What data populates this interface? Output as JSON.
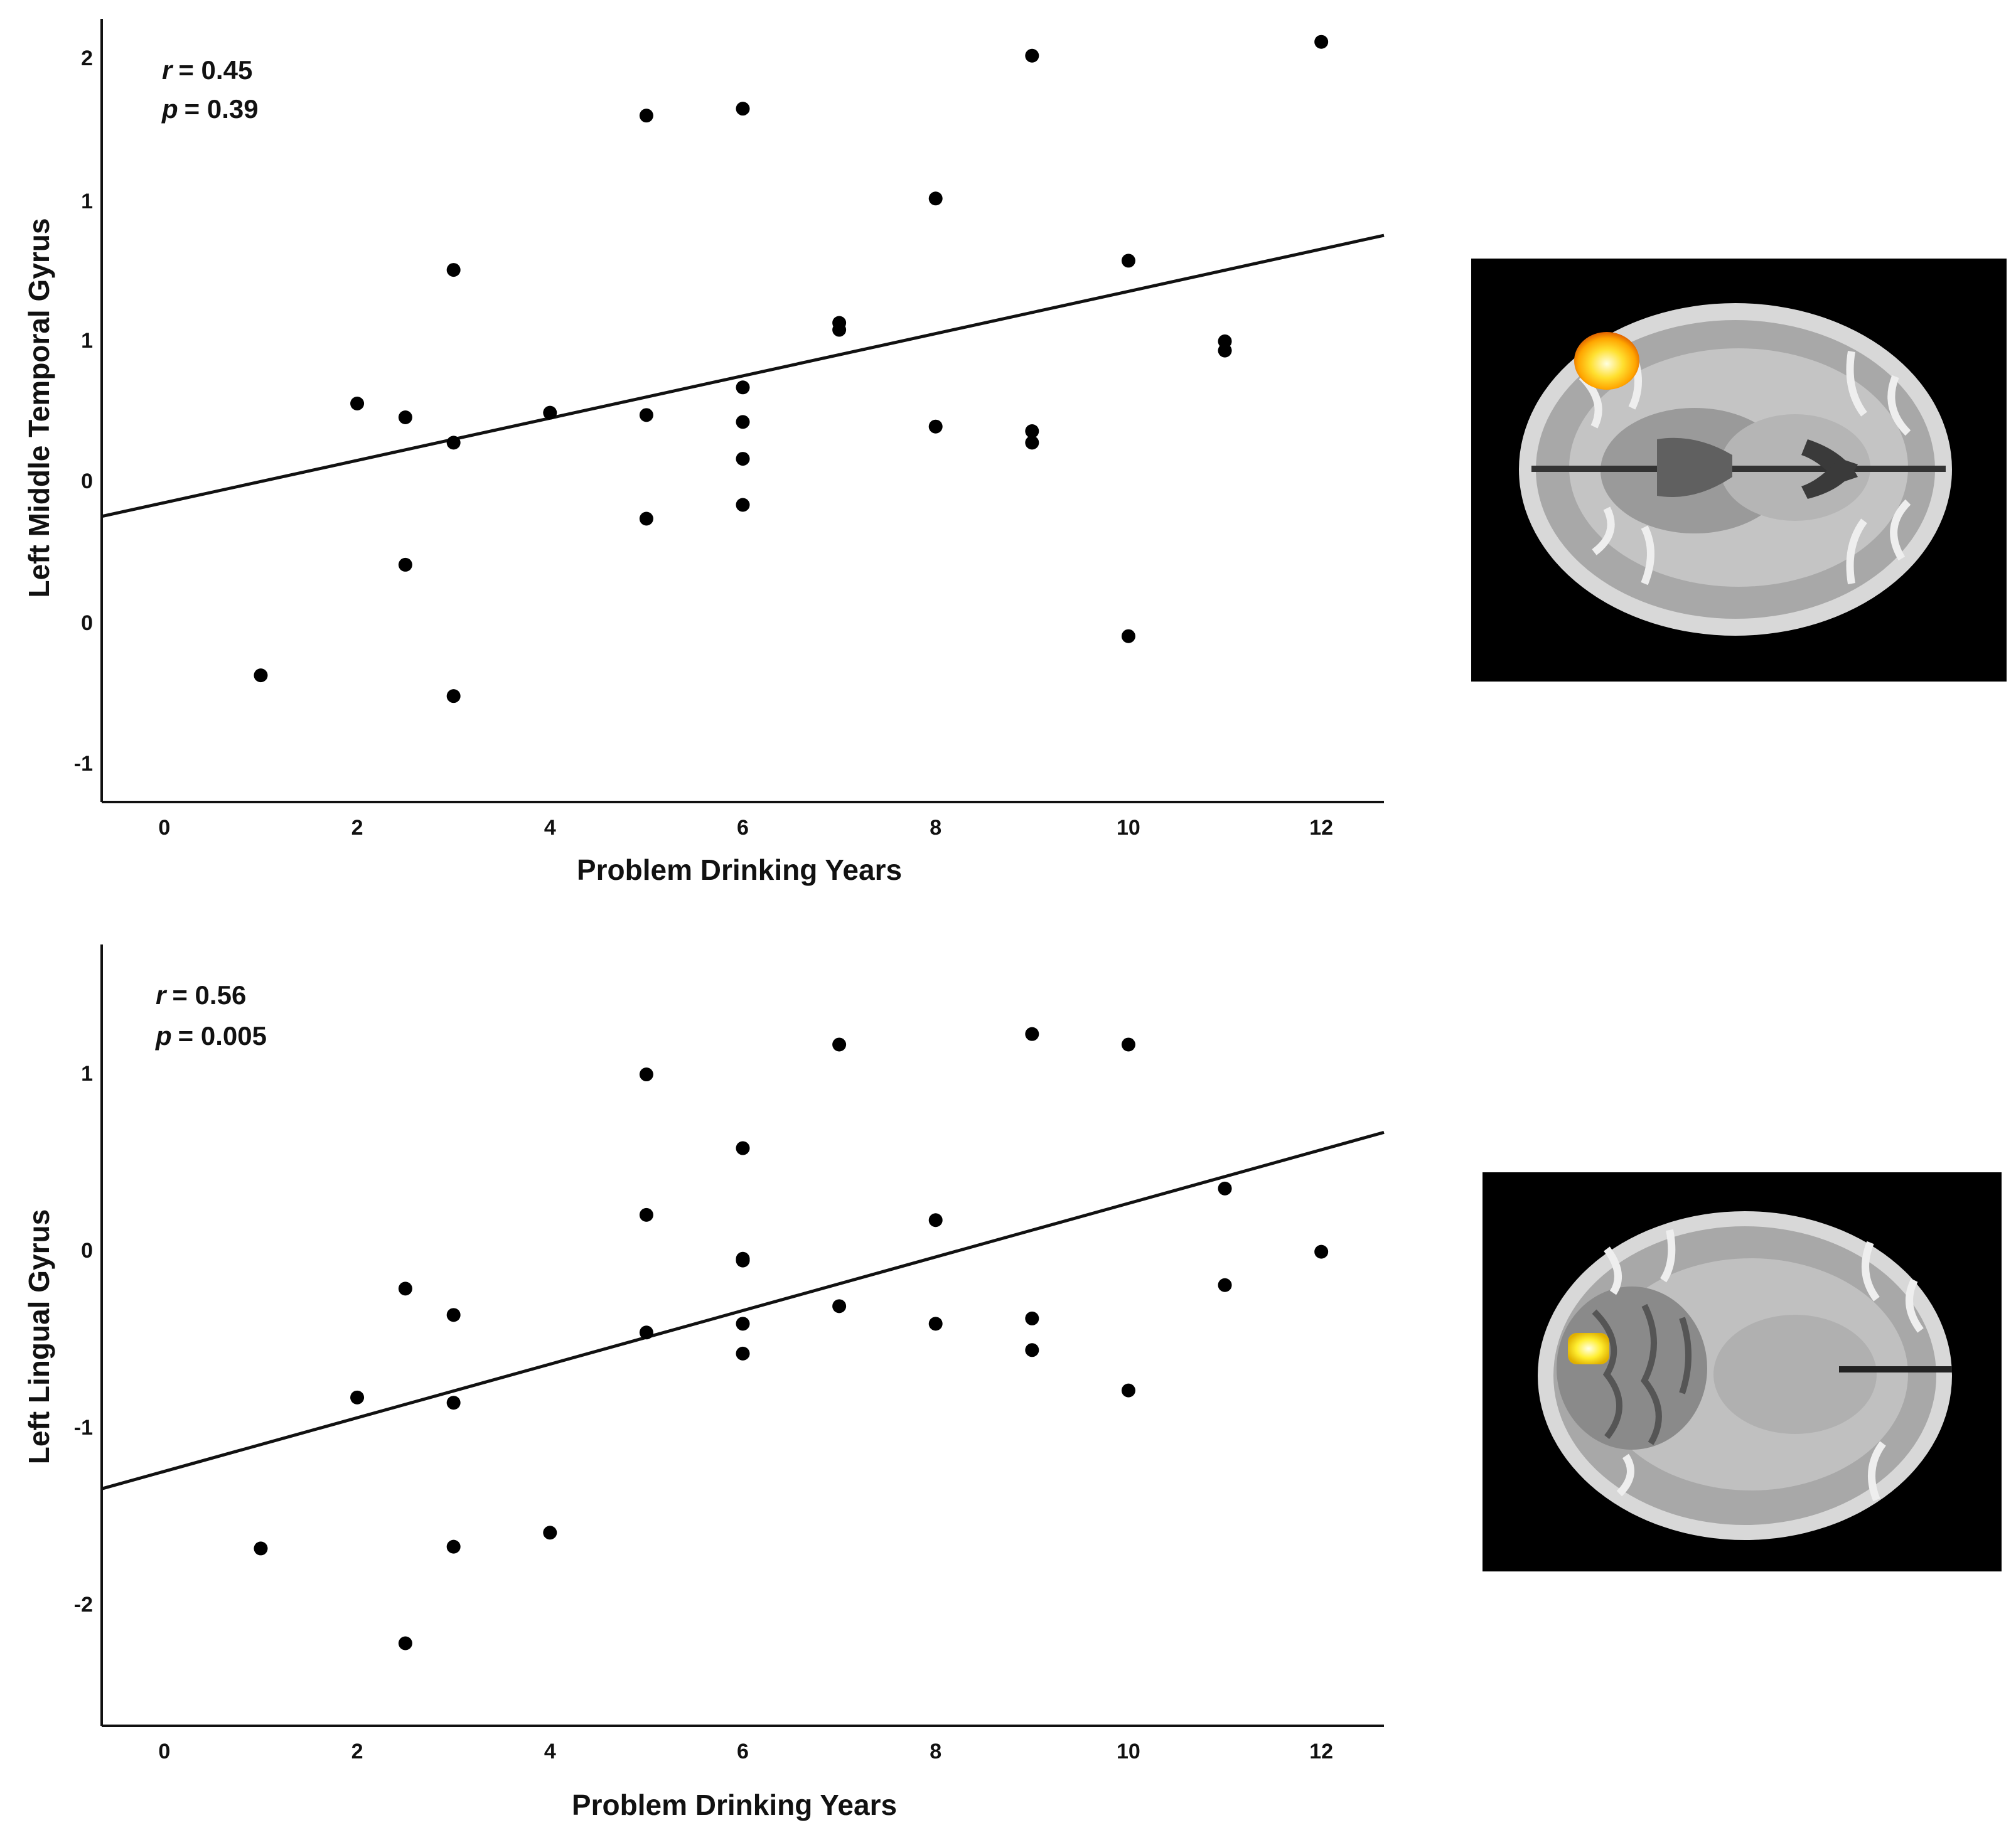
{
  "chart_data": [
    {
      "type": "scatter",
      "xlabel": "Problem Drinking Years",
      "ylabel": "Left Middle Temporal Gyrus",
      "x_ticks": [
        0,
        2,
        4,
        6,
        8,
        10,
        12
      ],
      "y_tick_labels": [
        "2",
        "1",
        "1",
        "0",
        "0",
        "-1"
      ],
      "xlim": [
        -0.65,
        12.65
      ],
      "ylim": [
        -1.25,
        2.15
      ],
      "annotation": {
        "r_label": "r",
        "r_value": "= 0.45",
        "p_label": "p",
        "p_value": "= 0.39"
      },
      "trend_line": {
        "x": [
          -0.65,
          12.65
        ],
        "y": [
          -0.01,
          1.21
        ]
      },
      "points": [
        {
          "x": 1,
          "y": -0.7
        },
        {
          "x": 2,
          "y": 0.48
        },
        {
          "x": 2.5,
          "y": 0.42
        },
        {
          "x": 2.5,
          "y": -0.22
        },
        {
          "x": 3,
          "y": 1.06
        },
        {
          "x": 3,
          "y": 0.31
        },
        {
          "x": 3,
          "y": -0.79
        },
        {
          "x": 4,
          "y": 0.44
        },
        {
          "x": 5,
          "y": 1.73
        },
        {
          "x": 5,
          "y": 0.43
        },
        {
          "x": 5,
          "y": -0.02
        },
        {
          "x": 6,
          "y": 1.76
        },
        {
          "x": 6,
          "y": 0.55
        },
        {
          "x": 6,
          "y": 0.4
        },
        {
          "x": 6,
          "y": 0.24
        },
        {
          "x": 6,
          "y": 0.04
        },
        {
          "x": 7,
          "y": 0.83
        },
        {
          "x": 7,
          "y": 0.8
        },
        {
          "x": 8,
          "y": 1.37
        },
        {
          "x": 8,
          "y": 0.38
        },
        {
          "x": 9,
          "y": 1.99
        },
        {
          "x": 9,
          "y": 0.36
        },
        {
          "x": 9,
          "y": 0.31
        },
        {
          "x": 10,
          "y": 1.1
        },
        {
          "x": 10,
          "y": -0.53
        },
        {
          "x": 11,
          "y": 0.75
        },
        {
          "x": 11,
          "y": 0.71
        },
        {
          "x": 12,
          "y": 2.05
        }
      ]
    },
    {
      "type": "scatter",
      "xlabel": "Problem Drinking Years",
      "ylabel": "Left Lingual Gyrus",
      "x_ticks": [
        0,
        2,
        4,
        6,
        8,
        10,
        12
      ],
      "y_tick_labels": [
        "1",
        "0",
        "-1",
        "-2"
      ],
      "xlim": [
        -0.65,
        12.65
      ],
      "ylim": [
        -2.7,
        1.75
      ],
      "annotation": {
        "r_label": "r",
        "r_value": "= 0.56",
        "p_label": "p",
        "p_value": "= 0.005"
      },
      "trend_line": {
        "x": [
          -0.65,
          12.65
        ],
        "y": [
          -1.35,
          0.68
        ]
      },
      "points": [
        {
          "x": 1,
          "y": -1.69
        },
        {
          "x": 2,
          "y": -0.83
        },
        {
          "x": 2.5,
          "y": -0.21
        },
        {
          "x": 2.5,
          "y": -2.23
        },
        {
          "x": 3,
          "y": -0.36
        },
        {
          "x": 3,
          "y": -0.86
        },
        {
          "x": 3,
          "y": -1.68
        },
        {
          "x": 4,
          "y": -1.6
        },
        {
          "x": 5,
          "y": 1.01
        },
        {
          "x": 5,
          "y": 0.21
        },
        {
          "x": 5,
          "y": -0.46
        },
        {
          "x": 6,
          "y": 0.59
        },
        {
          "x": 6,
          "y": -0.04
        },
        {
          "x": 6,
          "y": -0.05
        },
        {
          "x": 6,
          "y": -0.41
        },
        {
          "x": 6,
          "y": -0.58
        },
        {
          "x": 7,
          "y": 1.18
        },
        {
          "x": 7,
          "y": -0.31
        },
        {
          "x": 8,
          "y": 0.18
        },
        {
          "x": 8,
          "y": -0.41
        },
        {
          "x": 9,
          "y": 1.24
        },
        {
          "x": 9,
          "y": -0.38
        },
        {
          "x": 9,
          "y": -0.56
        },
        {
          "x": 10,
          "y": 1.18
        },
        {
          "x": 10,
          "y": -0.79
        },
        {
          "x": 11,
          "y": 0.36
        },
        {
          "x": 11,
          "y": -0.19
        },
        {
          "x": 12,
          "y": 0.0
        }
      ]
    }
  ],
  "brain_images": [
    {
      "label": "axial-slice-middle-temporal",
      "highlight_color": "#ffcc00"
    },
    {
      "label": "axial-slice-lingual",
      "highlight_color": "#ffe600"
    }
  ]
}
